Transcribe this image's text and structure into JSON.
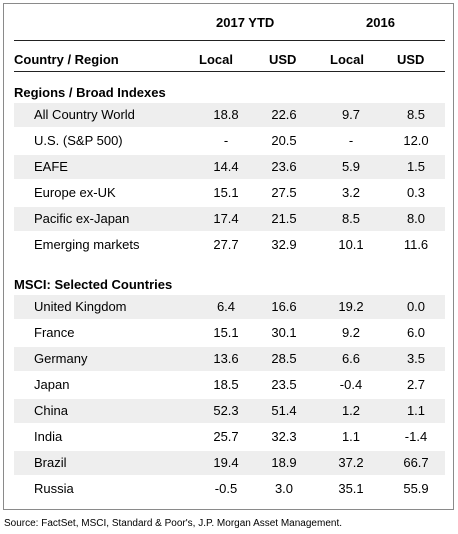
{
  "headers": {
    "period_2017": "2017 YTD",
    "period_2016": "2016",
    "country_region": "Country / Region",
    "local": "Local",
    "usd": "USD"
  },
  "sections": [
    {
      "title": "Regions / Broad Indexes",
      "rows": [
        {
          "name": "All Country World",
          "local_2017": "18.8",
          "usd_2017": "22.6",
          "local_2016": "9.7",
          "usd_2016": "8.5"
        },
        {
          "name": "U.S. (S&P 500)",
          "local_2017": "-",
          "usd_2017": "20.5",
          "local_2016": "-",
          "usd_2016": "12.0"
        },
        {
          "name": "EAFE",
          "local_2017": "14.4",
          "usd_2017": "23.6",
          "local_2016": "5.9",
          "usd_2016": "1.5"
        },
        {
          "name": "Europe ex-UK",
          "local_2017": "15.1",
          "usd_2017": "27.5",
          "local_2016": "3.2",
          "usd_2016": "0.3"
        },
        {
          "name": "Pacific ex-Japan",
          "local_2017": "17.4",
          "usd_2017": "21.5",
          "local_2016": "8.5",
          "usd_2016": "8.0"
        },
        {
          "name": "Emerging markets",
          "local_2017": "27.7",
          "usd_2017": "32.9",
          "local_2016": "10.1",
          "usd_2016": "11.6"
        }
      ]
    },
    {
      "title": "MSCI: Selected Countries",
      "rows": [
        {
          "name": "United Kingdom",
          "local_2017": "6.4",
          "usd_2017": "16.6",
          "local_2016": "19.2",
          "usd_2016": "0.0"
        },
        {
          "name": "France",
          "local_2017": "15.1",
          "usd_2017": "30.1",
          "local_2016": "9.2",
          "usd_2016": "6.0"
        },
        {
          "name": "Germany",
          "local_2017": "13.6",
          "usd_2017": "28.5",
          "local_2016": "6.6",
          "usd_2016": "3.5"
        },
        {
          "name": "Japan",
          "local_2017": "18.5",
          "usd_2017": "23.5",
          "local_2016": "-0.4",
          "usd_2016": "2.7"
        },
        {
          "name": "China",
          "local_2017": "52.3",
          "usd_2017": "51.4",
          "local_2016": "1.2",
          "usd_2016": "1.1"
        },
        {
          "name": "India",
          "local_2017": "25.7",
          "usd_2017": "32.3",
          "local_2016": "1.1",
          "usd_2016": "-1.4"
        },
        {
          "name": "Brazil",
          "local_2017": "19.4",
          "usd_2017": "18.9",
          "local_2016": "37.2",
          "usd_2016": "66.7"
        },
        {
          "name": "Russia",
          "local_2017": "-0.5",
          "usd_2017": "3.0",
          "local_2016": "35.1",
          "usd_2016": "55.9"
        }
      ]
    }
  ],
  "source": "Source: FactSet, MSCI, Standard & Poor's, J.P. Morgan Asset Management."
}
